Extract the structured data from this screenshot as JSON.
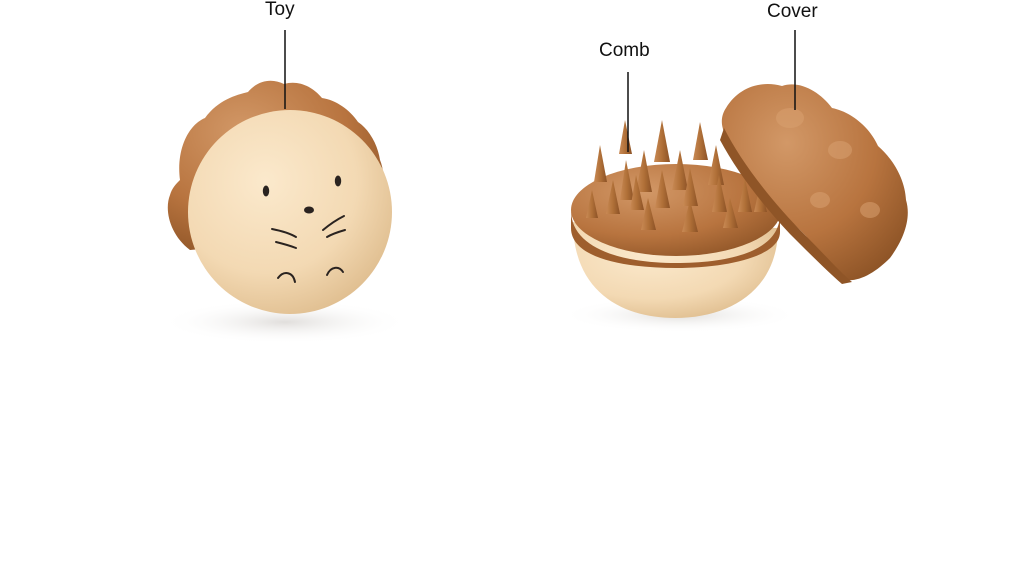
{
  "labels": {
    "toy": "Toy",
    "comb": "Comb",
    "cover": "Cover"
  },
  "colors": {
    "cream": "#f3d9b3",
    "cream_shade": "#e2bf8f",
    "brown": "#b8743f",
    "brown_dark": "#8f5527",
    "brown_light": "#cf9461",
    "line": "#111111"
  }
}
